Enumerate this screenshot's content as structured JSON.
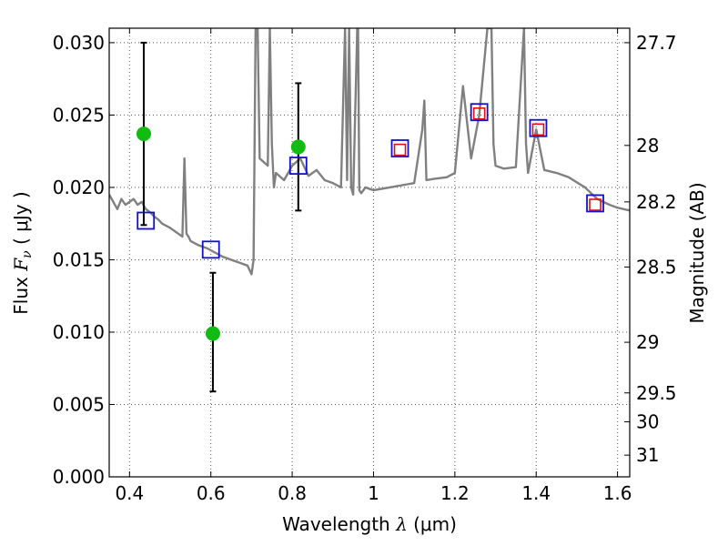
{
  "chart_data": {
    "type": "scatter",
    "xlabel_text": "Wavelength",
    "xlabel_symbol": "λ",
    "xlabel_unit": "(μm)",
    "ylabel_text": "Flux",
    "ylabel_symbol": "F",
    "ylabel_symbol_sub": "ν",
    "ylabel_unit": "( μJy )",
    "y2label": "Magnitude (AB)",
    "xlim": [
      0.35,
      1.63
    ],
    "ylim": [
      0.0,
      0.031
    ],
    "grid": true,
    "x_ticks": [
      0.4,
      0.6,
      0.8,
      1.0,
      1.2,
      1.4,
      1.6
    ],
    "x_tick_labels": [
      "0.4",
      "0.6",
      "0.8",
      "1",
      "1.2",
      "1.4",
      "1.6"
    ],
    "y_ticks": [
      0.0,
      0.005,
      0.01,
      0.015,
      0.02,
      0.025,
      0.03
    ],
    "y_tick_labels": [
      "0.000",
      "0.005",
      "0.010",
      "0.015",
      "0.020",
      "0.025",
      "0.030"
    ],
    "y2_ticks": [
      {
        "label": "27.7",
        "flux": 0.03
      },
      {
        "label": "28",
        "flux": 0.0229
      },
      {
        "label": "28.2",
        "flux": 0.019
      },
      {
        "label": "28.5",
        "flux": 0.0145
      },
      {
        "label": "29",
        "flux": 0.0093
      },
      {
        "label": "29.5",
        "flux": 0.0058
      },
      {
        "label": "30",
        "flux": 0.0038
      },
      {
        "label": "31",
        "flux": 0.0015
      }
    ],
    "colors": {
      "spectrum": "#808080",
      "photometry": "#11bb11",
      "model_box": "#1111cc",
      "inner_box": "#dd1111",
      "errorbar": "#000000",
      "grid": "#555555"
    },
    "series": [
      {
        "kind": "line",
        "x": [
          0.35,
          0.36,
          0.37,
          0.38,
          0.39,
          0.4,
          0.41,
          0.42,
          0.43,
          0.44,
          0.45,
          0.46,
          0.47,
          0.48,
          0.5,
          0.52,
          0.53,
          0.535,
          0.54,
          0.545,
          0.55,
          0.57,
          0.59,
          0.61,
          0.63,
          0.65,
          0.67,
          0.69,
          0.7,
          0.705,
          0.71,
          0.715,
          0.72,
          0.74,
          0.745,
          0.75,
          0.755,
          0.76,
          0.78,
          0.8,
          0.82,
          0.84,
          0.86,
          0.88,
          0.9,
          0.92,
          0.93,
          0.935,
          0.94,
          0.945,
          0.95,
          0.96,
          0.962,
          0.965,
          0.97,
          0.98,
          1.0,
          1.04,
          1.08,
          1.1,
          1.12,
          1.125,
          1.13,
          1.15,
          1.18,
          1.2,
          1.22,
          1.24,
          1.26,
          1.28,
          1.29,
          1.295,
          1.3,
          1.32,
          1.35,
          1.37,
          1.375,
          1.38,
          1.4,
          1.42,
          1.45,
          1.48,
          1.52,
          1.55,
          1.58,
          1.6,
          1.63
        ],
        "y": [
          0.0195,
          0.019,
          0.0185,
          0.0192,
          0.0188,
          0.019,
          0.0192,
          0.0188,
          0.019,
          0.0185,
          0.0183,
          0.018,
          0.0178,
          0.0175,
          0.0172,
          0.0168,
          0.0166,
          0.022,
          0.0168,
          0.0166,
          0.0163,
          0.016,
          0.0158,
          0.0155,
          0.0152,
          0.015,
          0.0148,
          0.0146,
          0.014,
          0.015,
          0.031,
          0.031,
          0.022,
          0.0215,
          0.031,
          0.023,
          0.02,
          0.021,
          0.0205,
          0.0215,
          0.022,
          0.0208,
          0.0212,
          0.0205,
          0.0203,
          0.02,
          0.031,
          0.0205,
          0.031,
          0.02,
          0.0195,
          0.031,
          0.031,
          0.0198,
          0.0196,
          0.02,
          0.0198,
          0.02,
          0.0202,
          0.0203,
          0.024,
          0.026,
          0.0205,
          0.0206,
          0.0207,
          0.021,
          0.027,
          0.022,
          0.025,
          0.031,
          0.031,
          0.023,
          0.0215,
          0.0213,
          0.0214,
          0.031,
          0.023,
          0.021,
          0.024,
          0.0212,
          0.021,
          0.0207,
          0.02,
          0.0192,
          0.0188,
          0.0186,
          0.0184
        ]
      },
      {
        "kind": "errorbar_points",
        "x": [
          0.435,
          0.605,
          0.815
        ],
        "y": [
          0.0237,
          0.0099,
          0.0228
        ],
        "yerr_low": [
          0.0063,
          0.004,
          0.0044
        ],
        "yerr_high": [
          0.0063,
          0.0042,
          0.0044
        ]
      },
      {
        "kind": "open_squares",
        "x": [
          0.44,
          0.6,
          0.815,
          1.065,
          1.26,
          1.405,
          1.545
        ],
        "y": [
          0.0177,
          0.0157,
          0.0215,
          0.0227,
          0.0252,
          0.0241,
          0.0189
        ]
      },
      {
        "kind": "inner_squares",
        "x": [
          1.065,
          1.26,
          1.405,
          1.545
        ],
        "y": [
          0.0226,
          0.0251,
          0.024,
          0.0188
        ]
      }
    ]
  }
}
